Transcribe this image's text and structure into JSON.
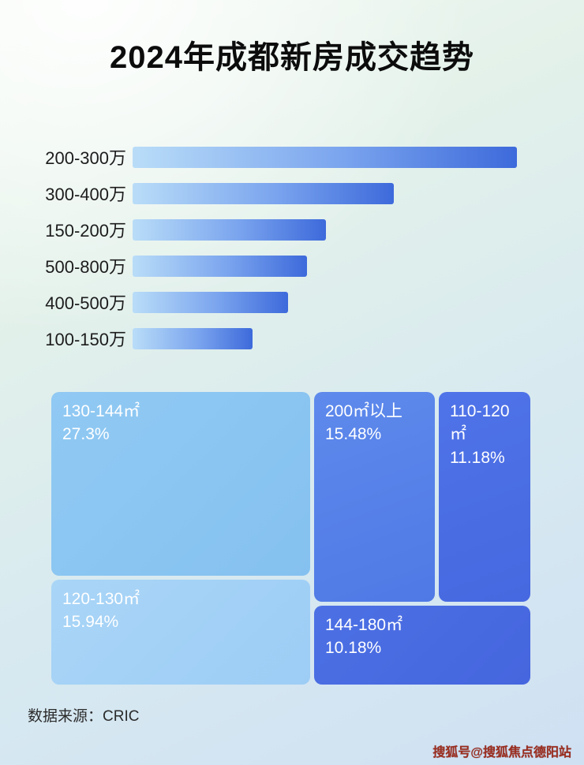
{
  "header": {
    "title": "2024年成都新房成交趋势"
  },
  "footer": {
    "source": "数据来源：CRIC"
  },
  "watermark": {
    "text": "搜狐号@搜狐焦点德阳站"
  },
  "colors": {
    "bar_gradient_start": "#b9ddf8",
    "bar_gradient_end": "#3d6adb",
    "tile_light_blue": "#8cc6f2",
    "tile_lighter_blue": "#a6d3f6",
    "tile_medium_blue": "#5b87ea",
    "tile_royal_blue": "#4b6fe6"
  },
  "chart_data": [
    {
      "type": "bar",
      "orientation": "horizontal",
      "title": "2024年成都新房成交趋势",
      "categories": [
        "200-300万",
        "300-400万",
        "150-200万",
        "500-800万",
        "400-500万",
        "100-150万"
      ],
      "values": [
        487,
        331,
        245,
        221,
        197,
        152
      ],
      "value_unit": "relative-length-px",
      "xlabel": "",
      "ylabel": "",
      "grid": false,
      "legend": false
    },
    {
      "type": "treemap",
      "tiles": [
        {
          "label": "130-144㎡",
          "percent": "27.3%"
        },
        {
          "label": "200㎡以上",
          "percent": "15.48%"
        },
        {
          "label": "110-120㎡",
          "percent": "11.18%"
        },
        {
          "label": "120-130㎡",
          "percent": "15.94%"
        },
        {
          "label": "144-180㎡",
          "percent": "10.18%"
        }
      ]
    }
  ]
}
